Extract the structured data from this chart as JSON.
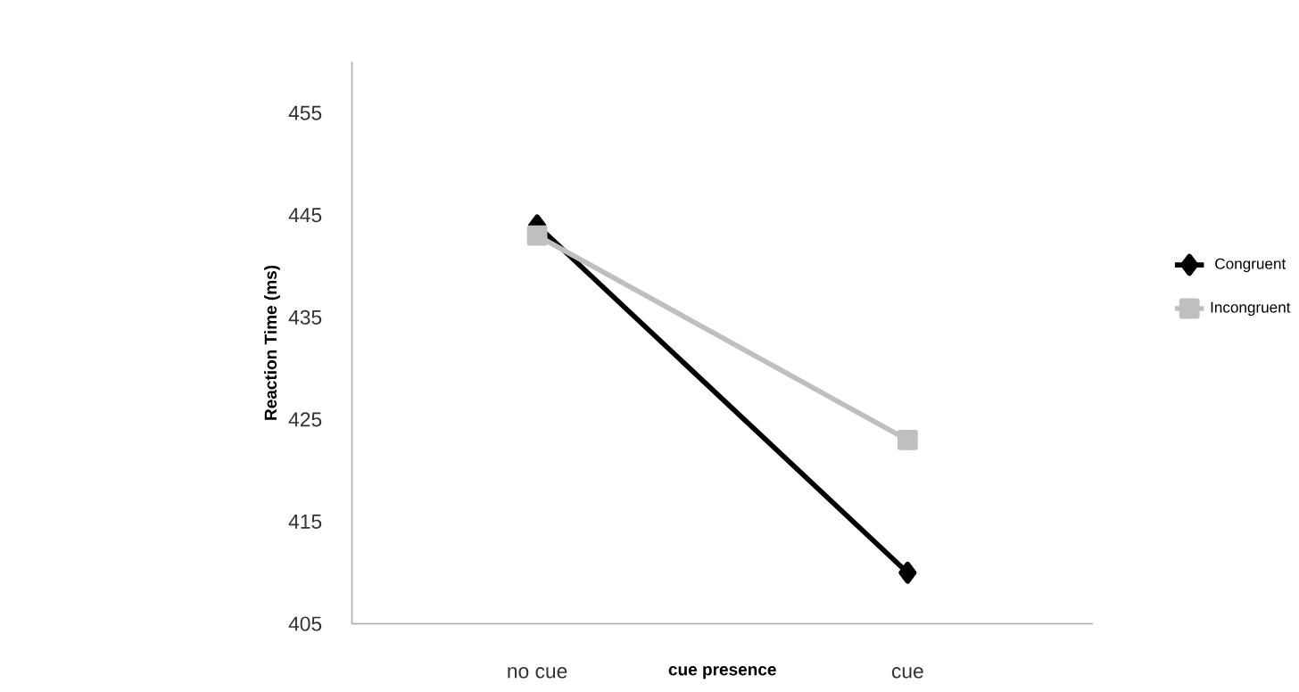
{
  "chart_data": {
    "type": "line",
    "xlabel": "cue presence",
    "ylabel": "Reaction Time (ms)",
    "categories": [
      "no cue",
      "cue"
    ],
    "series": [
      {
        "name": "Congruent",
        "color": "#000000",
        "values": [
          444,
          410
        ],
        "marker": "diamond"
      },
      {
        "name": "Incongruent",
        "color": "#bfbfbf",
        "values": [
          443,
          423
        ],
        "marker": "square"
      }
    ],
    "ylim": [
      405,
      460
    ],
    "yticks": [
      405,
      415,
      425,
      435,
      445,
      455
    ],
    "grid": false,
    "legend": "right",
    "line_style": "solid"
  }
}
